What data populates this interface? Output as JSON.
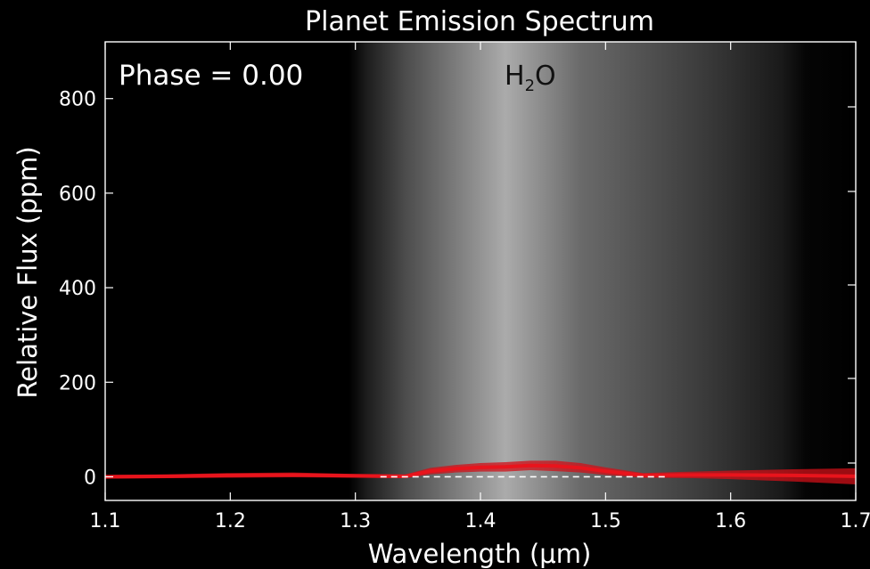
{
  "chart_data": {
    "type": "line",
    "title": "Planet Emission Spectrum",
    "xlabel": "Wavelength (μm)",
    "ylabel": "Relative Flux (ppm)",
    "xlim": [
      1.1,
      1.7
    ],
    "ylim": [
      -50,
      920
    ],
    "x_ticks": [
      1.1,
      1.2,
      1.3,
      1.4,
      1.5,
      1.6,
      1.7
    ],
    "x_tick_labels": [
      "1.1",
      "1.2",
      "1.3",
      "1.4",
      "1.5",
      "1.6",
      "1.7"
    ],
    "y_ticks": [
      0,
      200,
      400,
      600,
      800
    ],
    "y_tick_labels": [
      "0",
      "200",
      "400",
      "600",
      "800"
    ],
    "grid": false,
    "background": "#000000",
    "annotations": {
      "phase": "Phase = 0.00",
      "molecule_base": "H",
      "molecule_sub": "2",
      "molecule_rest": "O"
    },
    "h2o_band": {
      "start": 1.31,
      "peak": 1.42,
      "end": 1.64
    },
    "series": [
      {
        "color": "#e8141c",
        "uncertainty_color": "#d01018",
        "x": [
          1.1,
          1.15,
          1.2,
          1.25,
          1.3,
          1.34,
          1.36,
          1.38,
          1.4,
          1.42,
          1.44,
          1.46,
          1.48,
          1.5,
          1.53,
          1.57,
          1.6,
          1.65,
          1.7
        ],
        "y": [
          0,
          1,
          3,
          4,
          2,
          1,
          12,
          17,
          20,
          21,
          24,
          23,
          19,
          12,
          3,
          4,
          4,
          3,
          1
        ],
        "err": [
          4,
          4,
          5,
          5,
          4,
          4,
          7,
          8,
          9,
          10,
          10,
          11,
          10,
          8,
          5,
          7,
          9,
          13,
          17
        ]
      }
    ],
    "baseline": {
      "y": 0,
      "style": "dashed",
      "color": "#ffffff"
    },
    "right_axis": {
      "label": ""
    }
  }
}
